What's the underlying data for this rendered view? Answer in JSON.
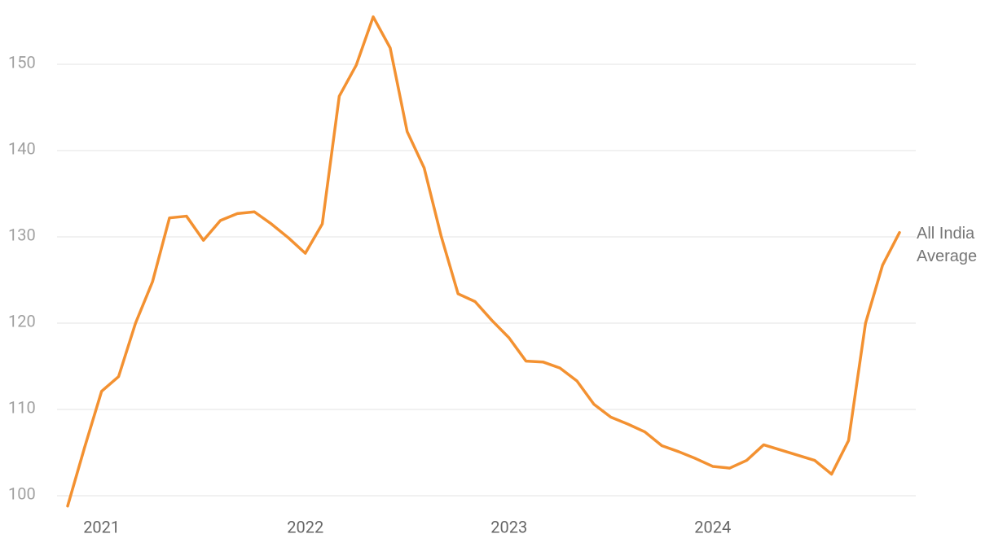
{
  "chart_data": {
    "type": "line",
    "categories": [
      null,
      null,
      "2021",
      null,
      null,
      null,
      null,
      null,
      null,
      null,
      null,
      null,
      null,
      null,
      "2022",
      null,
      null,
      null,
      null,
      null,
      null,
      null,
      null,
      null,
      null,
      null,
      "2023",
      null,
      null,
      null,
      null,
      null,
      null,
      null,
      null,
      null,
      null,
      null,
      "2024",
      null,
      null,
      null,
      null,
      null,
      null,
      null,
      null,
      null,
      null,
      null
    ],
    "series": [
      {
        "name": "All India Average",
        "color": "#f39131",
        "values": [
          98.8,
          105.6,
          112.1,
          113.8,
          120.0,
          124.8,
          132.2,
          132.4,
          129.6,
          131.9,
          132.7,
          132.9,
          131.5,
          129.9,
          128.1,
          131.5,
          146.3,
          149.9,
          155.5,
          151.9,
          142.2,
          138.0,
          130.1,
          123.4,
          122.5,
          120.3,
          118.3,
          115.6,
          115.5,
          114.8,
          113.3,
          110.6,
          109.1,
          108.3,
          107.4,
          105.8,
          105.1,
          104.3,
          103.4,
          103.2,
          104.1,
          105.9,
          105.3,
          104.7,
          104.1,
          102.5,
          106.4,
          120.0,
          126.7,
          130.5
        ]
      }
    ],
    "ylim": [
      98,
      156
    ],
    "yticks": [
      100,
      110,
      120,
      130,
      140,
      150
    ],
    "grid": true
  }
}
